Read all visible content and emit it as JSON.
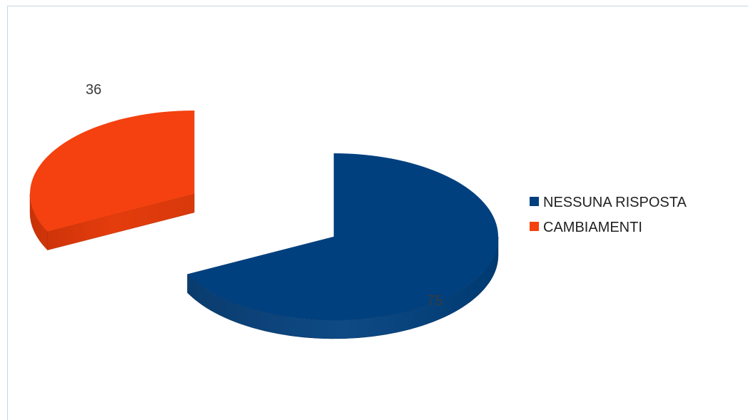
{
  "chart_data": {
    "type": "pie",
    "style": "3d-exploded",
    "title": "",
    "categories": [
      "NESSUNA RISPOSTA",
      "CAMBIAMENTI"
    ],
    "values": [
      75,
      36
    ],
    "colors": [
      "#00407f",
      "#f4410f"
    ],
    "legend": {
      "placement": "right",
      "entries": [
        "NESSUNA RISPOSTA",
        "CAMBIAMENTI"
      ]
    }
  }
}
